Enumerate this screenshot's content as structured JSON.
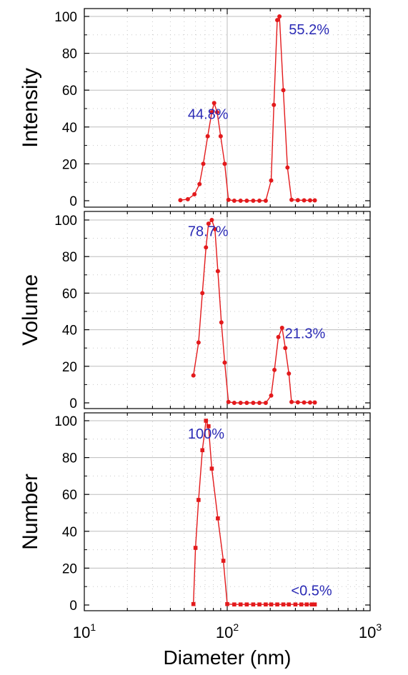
{
  "figure": {
    "xlabel": "Diameter (nm)",
    "xticks": [
      {
        "value": 10,
        "base": "10",
        "exp": "1"
      },
      {
        "value": 100,
        "base": "10",
        "exp": "2"
      },
      {
        "value": 1000,
        "base": "10",
        "exp": "3"
      }
    ],
    "series_color": "#e31a1c",
    "annotation_color": "#2a2ab5"
  },
  "chart_data": [
    {
      "type": "line",
      "ylabel": "Intensity",
      "xscale": "log",
      "xlim": [
        10,
        1000
      ],
      "ylim": [
        0,
        100
      ],
      "yticks": [
        0,
        20,
        40,
        60,
        80,
        100
      ],
      "grid": true,
      "x": [
        47,
        53,
        59,
        64,
        68,
        73,
        78,
        81,
        85,
        90,
        96,
        102,
        112,
        124,
        137,
        152,
        168,
        186,
        203,
        212,
        224,
        232,
        247,
        264,
        282,
        312,
        345,
        380,
        410
      ],
      "y": [
        0.3,
        0.8,
        3.5,
        9,
        20,
        35,
        48,
        53,
        48,
        35,
        20,
        0.5,
        0,
        0,
        0,
        0,
        0,
        0,
        11,
        52,
        98,
        100,
        60,
        18,
        0.5,
        0.3,
        0.2,
        0.2,
        0.2
      ],
      "marker": "circle",
      "annotations": [
        {
          "text": "44.8%",
          "x": 53,
          "y": 47
        },
        {
          "text": "55.2%",
          "x": 270,
          "y": 93
        }
      ]
    },
    {
      "type": "line",
      "ylabel": "Volume",
      "xscale": "log",
      "xlim": [
        10,
        1000
      ],
      "ylim": [
        0,
        100
      ],
      "yticks": [
        0,
        20,
        40,
        60,
        80,
        100
      ],
      "grid": true,
      "x": [
        58,
        63,
        67,
        71,
        74,
        78,
        82,
        86,
        91,
        96,
        102,
        112,
        124,
        137,
        152,
        168,
        186,
        203,
        214,
        228,
        242,
        255,
        270,
        282,
        312,
        345,
        380,
        410
      ],
      "y": [
        15,
        33,
        60,
        85,
        98,
        100,
        95,
        72,
        44,
        22,
        0.5,
        0,
        0,
        0,
        0,
        0,
        0,
        4,
        18,
        36,
        41,
        30,
        16,
        0.5,
        0.3,
        0.2,
        0.2,
        0.2
      ],
      "marker": "circle",
      "annotations": [
        {
          "text": "78.7%",
          "x": 53,
          "y": 94
        },
        {
          "text": "21.3%",
          "x": 253,
          "y": 38
        }
      ]
    },
    {
      "type": "line",
      "ylabel": "Number",
      "xscale": "log",
      "xlim": [
        10,
        1000
      ],
      "ylim": [
        0,
        100
      ],
      "yticks": [
        0,
        20,
        40,
        60,
        80,
        100
      ],
      "grid": true,
      "x": [
        58,
        60,
        63,
        67,
        71,
        74,
        78,
        86,
        94,
        100,
        112,
        124,
        137,
        152,
        168,
        186,
        203,
        224,
        247,
        270,
        300,
        330,
        360,
        390,
        410
      ],
      "y": [
        0.5,
        31,
        57,
        84,
        100,
        97,
        74,
        47,
        24,
        0.5,
        0.3,
        0.3,
        0.3,
        0.3,
        0.3,
        0.3,
        0.3,
        0.3,
        0.3,
        0.3,
        0.3,
        0.3,
        0.3,
        0.3,
        0.3
      ],
      "marker": "square",
      "annotations": [
        {
          "text": "100%",
          "x": 53,
          "y": 93
        },
        {
          "text": "<0.5%",
          "x": 280,
          "y": 8
        }
      ]
    }
  ]
}
